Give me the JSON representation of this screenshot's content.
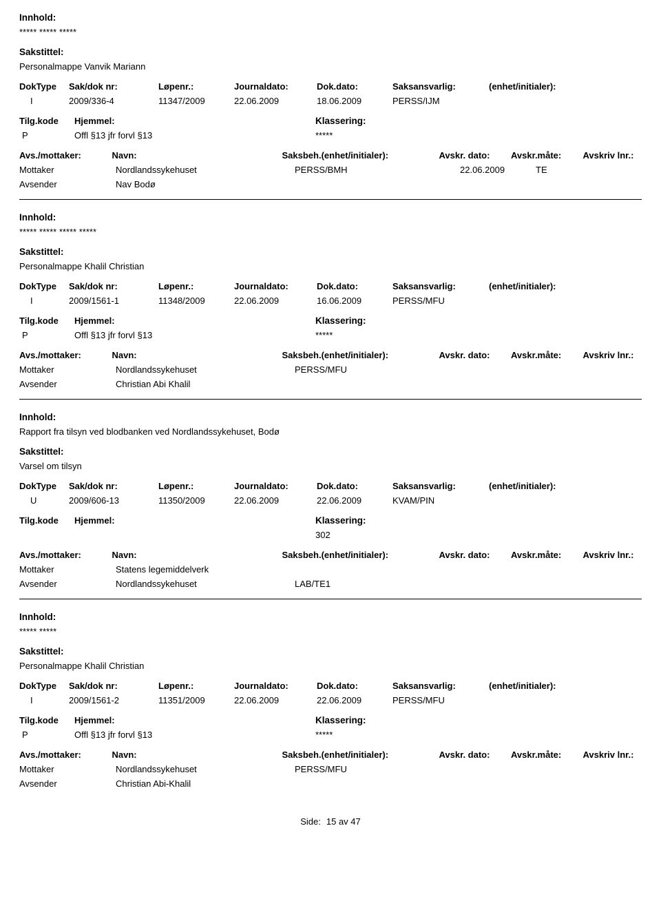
{
  "labels": {
    "innhold": "Innhold:",
    "sakstittel": "Sakstittel:",
    "doktype": "DokType",
    "sakdok": "Sak/dok nr:",
    "lopenr": "Løpenr.:",
    "journaldato": "Journaldato:",
    "dokdato": "Dok.dato:",
    "saksansvarlig": "Saksansvarlig:",
    "enhet_init": "(enhet/initialer):",
    "tilgkode": "Tilg.kode",
    "hjemmel": "Hjemmel:",
    "klassering": "Klassering:",
    "avs_mottaker": "Avs./mottaker:",
    "navn": "Navn:",
    "saksbeh_ei": "Saksbeh.(enhet/initialer):",
    "avskr_dato": "Avskr. dato:",
    "avskr_mate": "Avskr.måte:",
    "avskriv_lnr": "Avskriv lnr.:",
    "mottaker": "Mottaker",
    "avsender": "Avsender",
    "side": "Side:",
    "av": "av"
  },
  "page": {
    "current": "15",
    "total": "47"
  },
  "entries": [
    {
      "innhold": "***** ***** *****",
      "sakstittel": "Personalmappe Vanvik Mariann",
      "doktype": "I",
      "sakdok": "2009/336-4",
      "lopenr": "11347/2009",
      "jdato": "22.06.2009",
      "ddato": "18.06.2009",
      "saksans": "PERSS/IJM",
      "tk": "P",
      "hjemmel": "Offl §13 jfr forvl §13",
      "klassering": "*****",
      "parties": [
        {
          "role": "Mottaker",
          "navn": "Nordlandssykehuset",
          "saksbeh": "PERSS/BMH",
          "ad": "22.06.2009",
          "am": "TE"
        },
        {
          "role": "Avsender",
          "navn": "Nav Bodø",
          "saksbeh": "",
          "ad": "",
          "am": ""
        }
      ]
    },
    {
      "innhold": "***** ***** ***** *****",
      "sakstittel": "Personalmappe Khalil Christian",
      "doktype": "I",
      "sakdok": "2009/1561-1",
      "lopenr": "11348/2009",
      "jdato": "22.06.2009",
      "ddato": "16.06.2009",
      "saksans": "PERSS/MFU",
      "tk": "P",
      "hjemmel": "Offl §13 jfr forvl §13",
      "klassering": "*****",
      "parties": [
        {
          "role": "Mottaker",
          "navn": "Nordlandssykehuset",
          "saksbeh": "PERSS/MFU",
          "ad": "",
          "am": ""
        },
        {
          "role": "Avsender",
          "navn": "Christian Abi Khalil",
          "saksbeh": "",
          "ad": "",
          "am": ""
        }
      ]
    },
    {
      "innhold": "Rapport fra tilsyn ved blodbanken ved Nordlandssykehuset, Bodø",
      "sakstittel": "Varsel om tilsyn",
      "doktype": "U",
      "sakdok": "2009/606-13",
      "lopenr": "11350/2009",
      "jdato": "22.06.2009",
      "ddato": "22.06.2009",
      "saksans": "KVAM/PIN",
      "tk": "",
      "hjemmel": "",
      "klassering": "302",
      "parties": [
        {
          "role": "Mottaker",
          "navn": "Statens legemiddelverk",
          "saksbeh": "",
          "ad": "",
          "am": ""
        },
        {
          "role": "Avsender",
          "navn": "Nordlandssykehuset",
          "saksbeh": "LAB/TE1",
          "ad": "",
          "am": ""
        }
      ]
    },
    {
      "innhold": "***** *****",
      "sakstittel": "Personalmappe Khalil Christian",
      "doktype": "I",
      "sakdok": "2009/1561-2",
      "lopenr": "11351/2009",
      "jdato": "22.06.2009",
      "ddato": "22.06.2009",
      "saksans": "PERSS/MFU",
      "tk": "P",
      "hjemmel": "Offl §13 jfr forvl §13",
      "klassering": "*****",
      "parties": [
        {
          "role": "Mottaker",
          "navn": "Nordlandssykehuset",
          "saksbeh": "PERSS/MFU",
          "ad": "",
          "am": ""
        },
        {
          "role": "Avsender",
          "navn": "Christian Abi-Khalil",
          "saksbeh": "",
          "ad": "",
          "am": ""
        }
      ]
    }
  ]
}
